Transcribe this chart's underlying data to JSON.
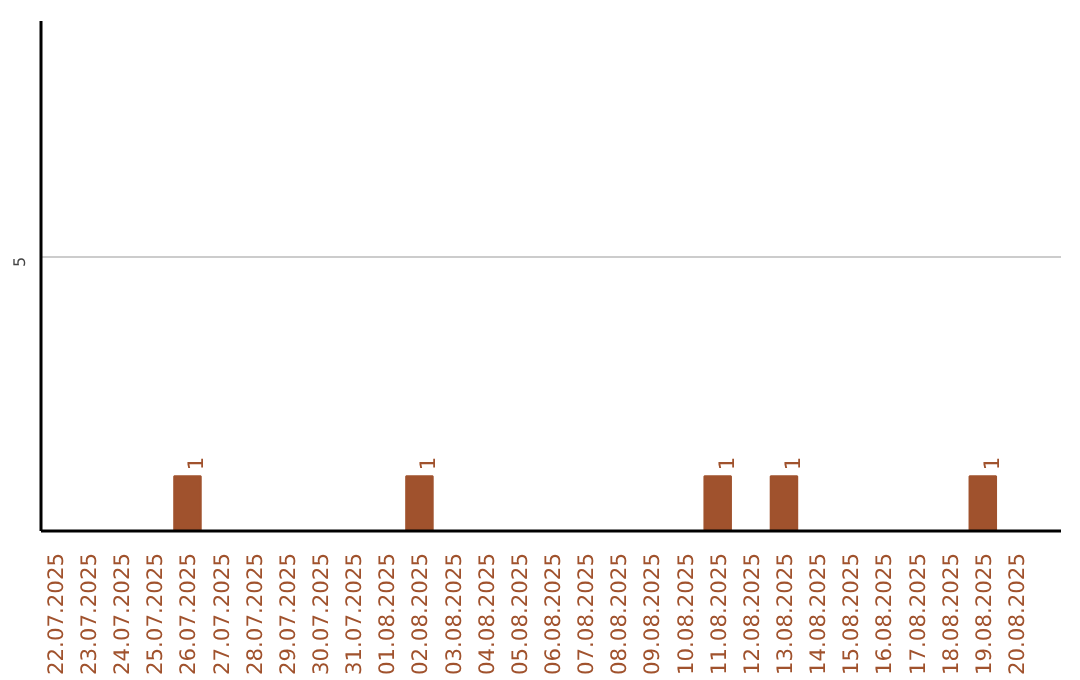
{
  "chart_data": {
    "type": "bar",
    "categories": [
      "22.07.2025",
      "23.07.2025",
      "24.07.2025",
      "25.07.2025",
      "26.07.2025",
      "27.07.2025",
      "28.07.2025",
      "29.07.2025",
      "30.07.2025",
      "31.07.2025",
      "01.08.2025",
      "02.08.2025",
      "03.08.2025",
      "04.08.2025",
      "05.08.2025",
      "06.08.2025",
      "07.08.2025",
      "08.08.2025",
      "09.08.2025",
      "10.08.2025",
      "11.08.2025",
      "12.08.2025",
      "13.08.2025",
      "14.08.2025",
      "15.08.2025",
      "16.08.2025",
      "17.08.2025",
      "18.08.2025",
      "19.08.2025",
      "20.08.2025"
    ],
    "values": [
      0,
      0,
      0,
      0,
      1,
      0,
      0,
      0,
      0,
      0,
      0,
      1,
      0,
      0,
      0,
      0,
      0,
      0,
      0,
      0,
      1,
      0,
      1,
      0,
      0,
      0,
      0,
      0,
      1,
      0
    ],
    "value_labels": [
      null,
      null,
      null,
      null,
      "1",
      null,
      null,
      null,
      null,
      null,
      null,
      "1",
      null,
      null,
      null,
      null,
      null,
      null,
      null,
      null,
      "1",
      null,
      "1",
      null,
      null,
      null,
      null,
      null,
      "1",
      null
    ],
    "color": "#a0522d",
    "ylim": [
      0,
      9.3
    ],
    "yticks": [
      5
    ],
    "grid": "y"
  }
}
